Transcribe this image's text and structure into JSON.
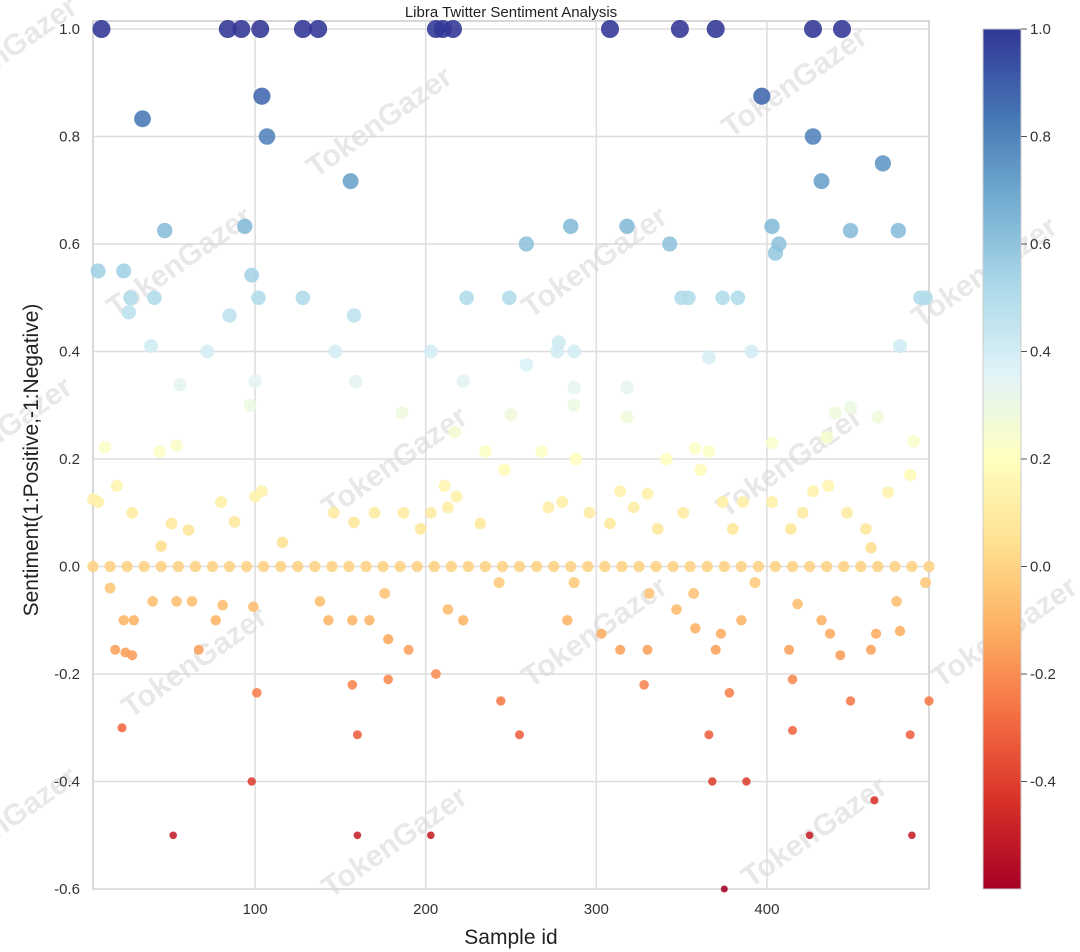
{
  "chart_data": {
    "type": "scatter",
    "title": "Libra Twitter Sentiment Analysis",
    "xlabel": "Sample id",
    "ylabel": "Sentiment(1:Positive,-1:Negative)",
    "xlim": [
      5,
      495
    ],
    "ylim": [
      -0.6,
      1.0
    ],
    "xticks": [
      100,
      200,
      300,
      400
    ],
    "yticks": [
      -0.6,
      -0.4,
      -0.2,
      0.0,
      0.2,
      0.4,
      0.6,
      0.8,
      1.0
    ],
    "xtick_labels": [
      "100",
      "200",
      "300",
      "400"
    ],
    "ytick_labels": [
      "-0.6",
      "-0.4",
      "-0.2",
      "0.0",
      "0.2",
      "0.4",
      "0.6",
      "0.8",
      "1.0"
    ],
    "grid": true,
    "marker_size_encodes": "sentiment",
    "colormap": "RdYlBu",
    "colorbar": {
      "range": [
        -0.6,
        1.0
      ],
      "ticks": [
        -0.4,
        -0.2,
        0.0,
        0.2,
        0.4,
        0.6,
        0.8,
        1.0
      ],
      "tick_labels": [
        "-0.4",
        "-0.2",
        "0.0",
        "0.2",
        "0.4",
        "0.6",
        "0.8",
        "1.0"
      ]
    },
    "points": [
      [
        10,
        1.0
      ],
      [
        84,
        1.0
      ],
      [
        92,
        1.0
      ],
      [
        103,
        1.0
      ],
      [
        128,
        1.0
      ],
      [
        137,
        1.0
      ],
      [
        206,
        1.0
      ],
      [
        210,
        1.0
      ],
      [
        216,
        1.0
      ],
      [
        308,
        1.0
      ],
      [
        349,
        1.0
      ],
      [
        370,
        1.0
      ],
      [
        427,
        1.0
      ],
      [
        444,
        1.0
      ],
      [
        104,
        0.875
      ],
      [
        397,
        0.875
      ],
      [
        34,
        0.833
      ],
      [
        107,
        0.8
      ],
      [
        427,
        0.8
      ],
      [
        156,
        0.717
      ],
      [
        432,
        0.717
      ],
      [
        468,
        0.75
      ],
      [
        47,
        0.625
      ],
      [
        94,
        0.633
      ],
      [
        285,
        0.633
      ],
      [
        318,
        0.633
      ],
      [
        403,
        0.633
      ],
      [
        449,
        0.625
      ],
      [
        477,
        0.625
      ],
      [
        259,
        0.6
      ],
      [
        343,
        0.6
      ],
      [
        407,
        0.6
      ],
      [
        405,
        0.583
      ],
      [
        8,
        0.55
      ],
      [
        23,
        0.55
      ],
      [
        98,
        0.542
      ],
      [
        27,
        0.5
      ],
      [
        41,
        0.5
      ],
      [
        102,
        0.5
      ],
      [
        128,
        0.5
      ],
      [
        224,
        0.5
      ],
      [
        249,
        0.5
      ],
      [
        350,
        0.5
      ],
      [
        354,
        0.5
      ],
      [
        374,
        0.5
      ],
      [
        383,
        0.5
      ],
      [
        490,
        0.5
      ],
      [
        493,
        0.5
      ],
      [
        26,
        0.473
      ],
      [
        85,
        0.467
      ],
      [
        158,
        0.467
      ],
      [
        39,
        0.41
      ],
      [
        72,
        0.4
      ],
      [
        147,
        0.4
      ],
      [
        203,
        0.4
      ],
      [
        277,
        0.4
      ],
      [
        287,
        0.4
      ],
      [
        391,
        0.4
      ],
      [
        478,
        0.41
      ],
      [
        278,
        0.417
      ],
      [
        259,
        0.375
      ],
      [
        366,
        0.389
      ],
      [
        100,
        0.345
      ],
      [
        56,
        0.338
      ],
      [
        159,
        0.344
      ],
      [
        222,
        0.345
      ],
      [
        287,
        0.333
      ],
      [
        318,
        0.333
      ],
      [
        97,
        0.3
      ],
      [
        186,
        0.286
      ],
      [
        250,
        0.282
      ],
      [
        287,
        0.3
      ],
      [
        318,
        0.278
      ],
      [
        440,
        0.286
      ],
      [
        449,
        0.296
      ],
      [
        465,
        0.278
      ],
      [
        12,
        0.222
      ],
      [
        44,
        0.214
      ],
      [
        54,
        0.225
      ],
      [
        217,
        0.25
      ],
      [
        235,
        0.214
      ],
      [
        268,
        0.214
      ],
      [
        288,
        0.2
      ],
      [
        341,
        0.2
      ],
      [
        358,
        0.22
      ],
      [
        366,
        0.214
      ],
      [
        403,
        0.23
      ],
      [
        435,
        0.24
      ],
      [
        486,
        0.233
      ],
      [
        5,
        0.125
      ],
      [
        8,
        0.12
      ],
      [
        19,
        0.15
      ],
      [
        28,
        0.1
      ],
      [
        45,
        0.038
      ],
      [
        51,
        0.08
      ],
      [
        61,
        0.068
      ],
      [
        80,
        0.12
      ],
      [
        88,
        0.083
      ],
      [
        100,
        0.13
      ],
      [
        104,
        0.14
      ],
      [
        116,
        0.045
      ],
      [
        146,
        0.1
      ],
      [
        158,
        0.082
      ],
      [
        170,
        0.1
      ],
      [
        187,
        0.1
      ],
      [
        197,
        0.07
      ],
      [
        203,
        0.1
      ],
      [
        211,
        0.15
      ],
      [
        213,
        0.11
      ],
      [
        218,
        0.13
      ],
      [
        232,
        0.08
      ],
      [
        246,
        0.18
      ],
      [
        272,
        0.11
      ],
      [
        280,
        0.12
      ],
      [
        296,
        0.1
      ],
      [
        308,
        0.08
      ],
      [
        314,
        0.14
      ],
      [
        322,
        0.11
      ],
      [
        330,
        0.135
      ],
      [
        336,
        0.07
      ],
      [
        351,
        0.1
      ],
      [
        361,
        0.18
      ],
      [
        374,
        0.12
      ],
      [
        380,
        0.07
      ],
      [
        386,
        0.12
      ],
      [
        403,
        0.12
      ],
      [
        414,
        0.07
      ],
      [
        421,
        0.1
      ],
      [
        427,
        0.14
      ],
      [
        436,
        0.15
      ],
      [
        447,
        0.1
      ],
      [
        458,
        0.07
      ],
      [
        461,
        0.035
      ],
      [
        471,
        0.138
      ],
      [
        484,
        0.17
      ],
      [
        5,
        0.0
      ],
      [
        15,
        0.0
      ],
      [
        25,
        0.0
      ],
      [
        35,
        0.0
      ],
      [
        45,
        0.0
      ],
      [
        55,
        0.0
      ],
      [
        65,
        0.0
      ],
      [
        75,
        0.0
      ],
      [
        85,
        0.0
      ],
      [
        95,
        0.0
      ],
      [
        105,
        0.0
      ],
      [
        115,
        0.0
      ],
      [
        125,
        0.0
      ],
      [
        135,
        0.0
      ],
      [
        145,
        0.0
      ],
      [
        155,
        0.0
      ],
      [
        165,
        0.0
      ],
      [
        175,
        0.0
      ],
      [
        185,
        0.0
      ],
      [
        195,
        0.0
      ],
      [
        205,
        0.0
      ],
      [
        215,
        0.0
      ],
      [
        225,
        0.0
      ],
      [
        235,
        0.0
      ],
      [
        245,
        0.0
      ],
      [
        255,
        0.0
      ],
      [
        265,
        0.0
      ],
      [
        275,
        0.0
      ],
      [
        285,
        0.0
      ],
      [
        295,
        0.0
      ],
      [
        305,
        0.0
      ],
      [
        315,
        0.0
      ],
      [
        325,
        0.0
      ],
      [
        335,
        0.0
      ],
      [
        345,
        0.0
      ],
      [
        355,
        0.0
      ],
      [
        365,
        0.0
      ],
      [
        375,
        0.0
      ],
      [
        385,
        0.0
      ],
      [
        395,
        0.0
      ],
      [
        405,
        0.0
      ],
      [
        415,
        0.0
      ],
      [
        425,
        0.0
      ],
      [
        435,
        0.0
      ],
      [
        445,
        0.0
      ],
      [
        455,
        0.0
      ],
      [
        465,
        0.0
      ],
      [
        475,
        0.0
      ],
      [
        485,
        0.0
      ],
      [
        495,
        0.0
      ],
      [
        15,
        -0.04
      ],
      [
        40,
        -0.065
      ],
      [
        54,
        -0.065
      ],
      [
        63,
        -0.065
      ],
      [
        81,
        -0.072
      ],
      [
        99,
        -0.075
      ],
      [
        138,
        -0.065
      ],
      [
        176,
        -0.05
      ],
      [
        243,
        -0.03
      ],
      [
        287,
        -0.03
      ],
      [
        331,
        -0.05
      ],
      [
        357,
        -0.05
      ],
      [
        393,
        -0.03
      ],
      [
        418,
        -0.07
      ],
      [
        476,
        -0.065
      ],
      [
        493,
        -0.03
      ],
      [
        23,
        -0.1
      ],
      [
        29,
        -0.1
      ],
      [
        67,
        -0.155
      ],
      [
        77,
        -0.1
      ],
      [
        143,
        -0.1
      ],
      [
        157,
        -0.1
      ],
      [
        167,
        -0.1
      ],
      [
        178,
        -0.135
      ],
      [
        190,
        -0.155
      ],
      [
        213,
        -0.08
      ],
      [
        222,
        -0.1
      ],
      [
        283,
        -0.1
      ],
      [
        303,
        -0.125
      ],
      [
        314,
        -0.155
      ],
      [
        330,
        -0.155
      ],
      [
        347,
        -0.08
      ],
      [
        358,
        -0.115
      ],
      [
        370,
        -0.155
      ],
      [
        373,
        -0.125
      ],
      [
        385,
        -0.1
      ],
      [
        413,
        -0.155
      ],
      [
        432,
        -0.1
      ],
      [
        437,
        -0.125
      ],
      [
        443,
        -0.165
      ],
      [
        461,
        -0.155
      ],
      [
        464,
        -0.125
      ],
      [
        478,
        -0.12
      ],
      [
        18,
        -0.155
      ],
      [
        24,
        -0.16
      ],
      [
        28,
        -0.165
      ],
      [
        101,
        -0.235
      ],
      [
        157,
        -0.22
      ],
      [
        178,
        -0.21
      ],
      [
        206,
        -0.2
      ],
      [
        244,
        -0.25
      ],
      [
        328,
        -0.22
      ],
      [
        378,
        -0.235
      ],
      [
        415,
        -0.21
      ],
      [
        449,
        -0.25
      ],
      [
        495,
        -0.25
      ],
      [
        22,
        -0.3
      ],
      [
        160,
        -0.313
      ],
      [
        255,
        -0.313
      ],
      [
        366,
        -0.313
      ],
      [
        415,
        -0.305
      ],
      [
        484,
        -0.313
      ],
      [
        98,
        -0.4
      ],
      [
        368,
        -0.4
      ],
      [
        388,
        -0.4
      ],
      [
        463,
        -0.435
      ],
      [
        52,
        -0.5
      ],
      [
        160,
        -0.5
      ],
      [
        203,
        -0.5
      ],
      [
        425,
        -0.5
      ],
      [
        485,
        -0.5
      ],
      [
        375,
        -0.6
      ]
    ]
  },
  "watermark": "TokenGazer"
}
